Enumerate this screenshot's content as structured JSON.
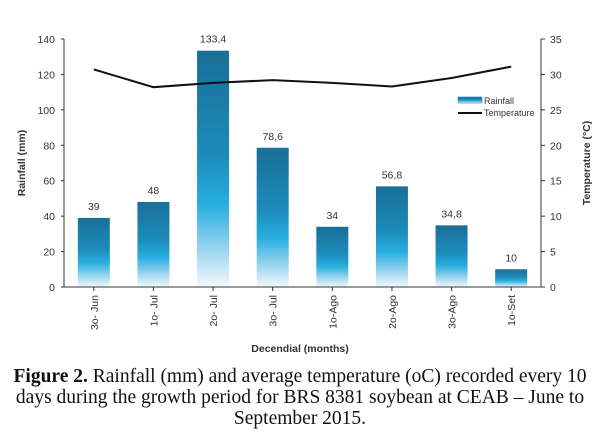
{
  "chart_data": {
    "type": "bar+line",
    "categories": [
      "3o- Jun",
      "1o- Jul",
      "2o- Jul",
      "3o- Jul",
      "1o-Ago",
      "2o-Ago",
      "3o-Ago",
      "1o-Set"
    ],
    "series": [
      {
        "name": "Rainfall",
        "type": "bar",
        "axis": "left",
        "values": [
          39,
          48,
          133.4,
          78.6,
          34,
          56.8,
          34.8,
          10
        ],
        "labels": [
          "39",
          "48",
          "133,4",
          "78,6",
          "34",
          "56,8",
          "34,8",
          "10"
        ],
        "color": "#1a7fa8"
      },
      {
        "name": "Temperature",
        "type": "line",
        "axis": "right",
        "values": [
          30.7,
          28.2,
          28.8,
          29.2,
          28.8,
          28.3,
          29.5,
          31.1
        ],
        "color": "#111111"
      }
    ],
    "xlabel": "Decendial (months)",
    "ylabel": "Rainfall (mm)",
    "y2label": "Temperature (°C)",
    "ylim": [
      0,
      140
    ],
    "yticks": [
      0,
      20,
      40,
      60,
      80,
      100,
      120,
      140
    ],
    "y2lim": [
      0,
      35
    ],
    "y2ticks": [
      0,
      5,
      10,
      15,
      20,
      25,
      30,
      35
    ],
    "grid": false,
    "legend": "right"
  },
  "caption": {
    "label": "Figure 2.",
    "text": " Rainfall (mm) and average temperature (oC) recorded every 10 days during the growth period for BRS 8381 soybean at CEAB – June to September 2015."
  }
}
